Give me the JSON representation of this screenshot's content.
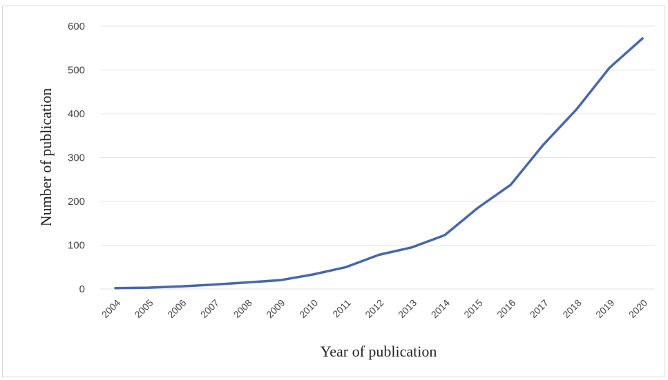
{
  "chart_data": {
    "type": "line",
    "title": "",
    "xlabel": "Year of publication",
    "ylabel": "Number of publication",
    "ylim": [
      0,
      600
    ],
    "yticks": [
      0,
      100,
      200,
      300,
      400,
      500,
      600
    ],
    "grid": true,
    "legend": "none",
    "x": [
      "2004",
      "2005",
      "2006",
      "2007",
      "2008",
      "2009",
      "2010",
      "2011",
      "2012",
      "2013",
      "2014",
      "2015",
      "2016",
      "2017",
      "2018",
      "2019",
      "2020"
    ],
    "series": [
      {
        "color": "#4667ac",
        "values": [
          2,
          3,
          6,
          10,
          15,
          20,
          33,
          50,
          78,
          95,
          123,
          185,
          238,
          330,
          410,
          505,
          572
        ]
      }
    ]
  }
}
